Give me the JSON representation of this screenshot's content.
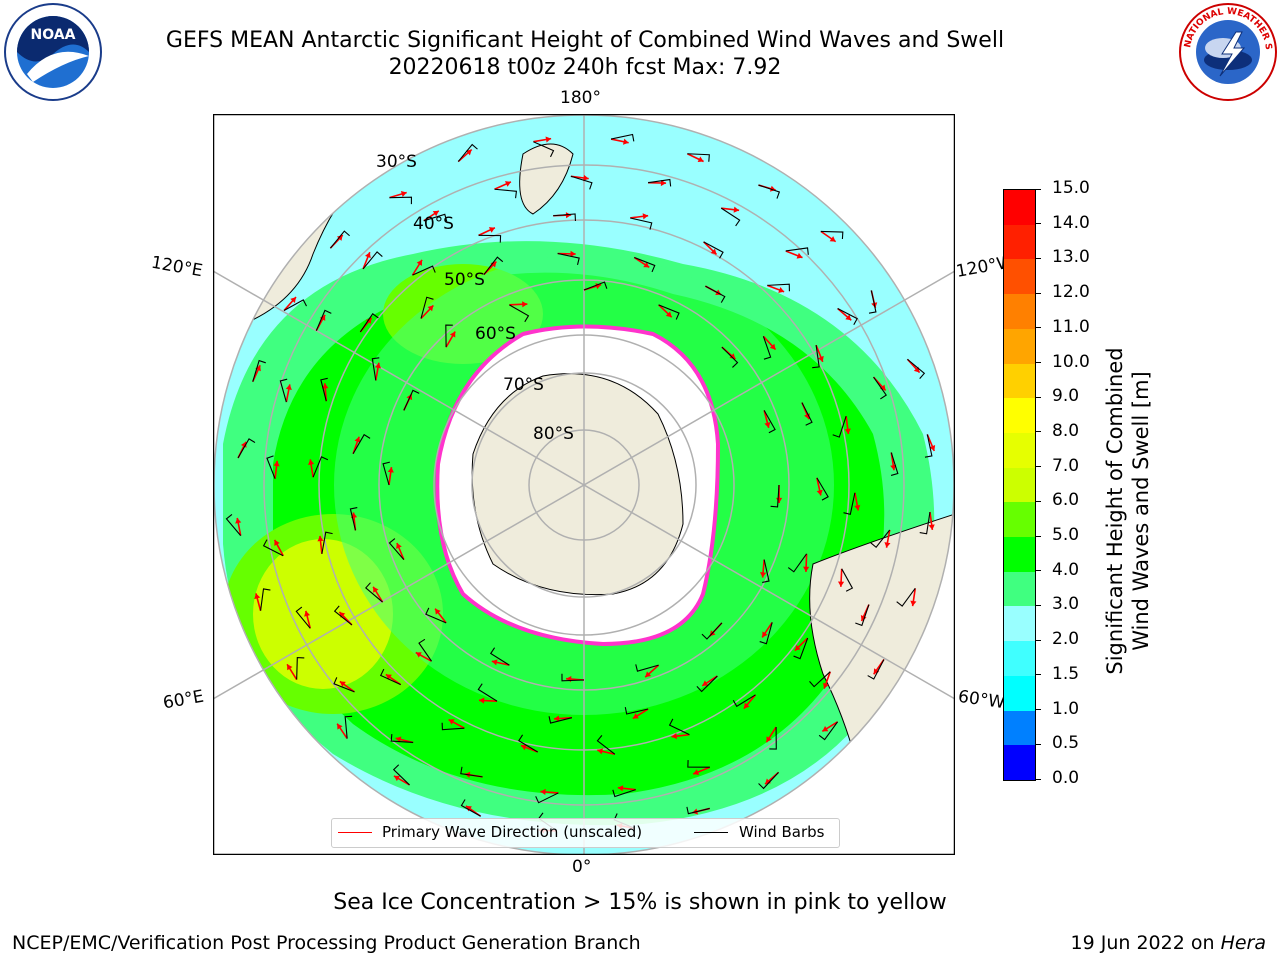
{
  "header": {
    "title_line1": "GEFS MEAN Antarctic Significant Height of Combined Wind Waves and Swell",
    "title_line2": "20220618 t00z 240h fcst   Max: 7.92"
  },
  "logos": {
    "left": {
      "icon": "noaa-logo",
      "text": "NOAA"
    },
    "right": {
      "icon": "nws-logo",
      "text": "NATIONAL WEATHER SERVICE"
    }
  },
  "map": {
    "longitude_labels": [
      "180°",
      "120°E",
      "120°W",
      "60°E",
      "60°W",
      "0°"
    ],
    "latitude_labels": [
      "30°S",
      "40°S",
      "50°S",
      "60°S",
      "70°S",
      "80°S"
    ],
    "legend": {
      "primary_wave": "Primary Wave Direction (unscaled)",
      "wind_barbs": "Wind Barbs"
    },
    "colors": {
      "land": "#efecdc",
      "ice": "#ffffff",
      "ice_edge": "#ff33cc",
      "arrow": "#ff0000",
      "barb": "#000000",
      "grid": "#b0b0b0"
    }
  },
  "colorbar": {
    "label_line1": "Significant Height of Combined",
    "label_line2": "Wind Waves and Swell [m]",
    "ticks": [
      "15.0",
      "14.0",
      "13.0",
      "12.0",
      "11.0",
      "10.0",
      "9.0",
      "8.0",
      "7.0",
      "6.0",
      "5.0",
      "4.0",
      "3.0",
      "2.0",
      "1.5",
      "1.0",
      "0.5",
      "0.0"
    ],
    "colors_bottom_to_top": [
      "#0000ff",
      "#0080ff",
      "#00ffff",
      "#40ffff",
      "#99ffff",
      "#40ff80",
      "#00ff00",
      "#66ff00",
      "#ccff00",
      "#e6ff00",
      "#ffff00",
      "#ffd000",
      "#ffa500",
      "#ff8000",
      "#ff5000",
      "#ff2000",
      "#ff0000"
    ]
  },
  "note": "Sea Ice Concentration > 15% is shown in pink to yellow",
  "footer": {
    "left": "NCEP/EMC/Verification Post Processing Product Generation Branch",
    "right_prefix": "19 Jun 2022 on ",
    "right_host": "Hera"
  }
}
